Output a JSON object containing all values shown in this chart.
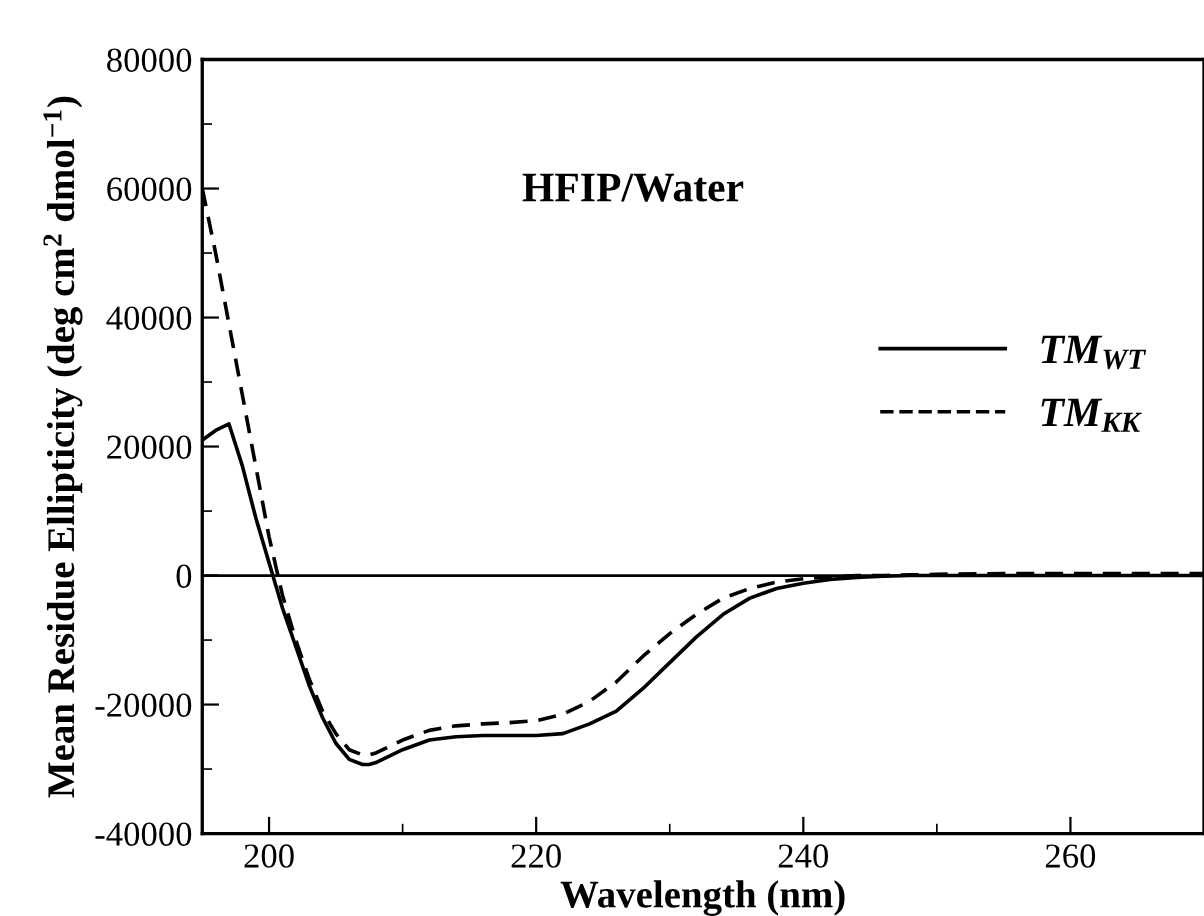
{
  "chart_data": {
    "type": "line",
    "xlabel": "Wavelength (nm)",
    "ylabel": "Mean Residue Ellipticity (deg cm$^{2}$ dmol$^{−1}$)",
    "annotations": [
      "HFIP/Water"
    ],
    "xlim": [
      195,
      270
    ],
    "xticks": [
      200,
      220,
      240,
      260
    ],
    "ylim": [
      -40000,
      80000
    ],
    "yticks": [
      -40000,
      -20000,
      0,
      20000,
      40000,
      60000,
      80000
    ],
    "grid": false,
    "legend": "right",
    "marker": "none",
    "ref_lines": [
      {
        "axis": "y",
        "value": 0,
        "color": "#000000"
      }
    ],
    "series": [
      {
        "name": "TM$_{WT}$",
        "color": "#000000",
        "line_style": "solid",
        "x": [
          195,
          196,
          197,
          198,
          199,
          200,
          201,
          202,
          203,
          204,
          205,
          206,
          207,
          207.5,
          208,
          209,
          210,
          212,
          214,
          216,
          218,
          220,
          222,
          224,
          226,
          228,
          230,
          232,
          234,
          236,
          238,
          240,
          242,
          244,
          246,
          248,
          250,
          260,
          270
        ],
        "values": [
          21000,
          22500,
          23500,
          17000,
          9000,
          2000,
          -5000,
          -11000,
          -17000,
          -22000,
          -26000,
          -28500,
          -29300,
          -29300,
          -29000,
          -28000,
          -27000,
          -25500,
          -25000,
          -24800,
          -24800,
          -24800,
          -24500,
          -23000,
          -21000,
          -17500,
          -13500,
          -9500,
          -6000,
          -3500,
          -2000,
          -1200,
          -600,
          -300,
          -100,
          0,
          0,
          0,
          0
        ]
      },
      {
        "name": "TM$_{KK}$",
        "color": "#000000",
        "line_style": "dashed",
        "x": [
          195,
          196,
          197,
          198,
          199,
          200,
          201,
          202,
          203,
          204,
          205,
          206,
          207,
          207.5,
          208,
          209,
          210,
          212,
          214,
          216,
          218,
          220,
          222,
          224,
          226,
          228,
          230,
          232,
          234,
          236,
          238,
          240,
          242,
          244,
          246,
          248,
          250,
          255,
          260,
          265,
          270
        ],
        "values": [
          60000,
          50000,
          39000,
          28000,
          17000,
          6000,
          -3000,
          -10000,
          -16000,
          -21000,
          -24500,
          -27000,
          -27800,
          -27800,
          -27500,
          -26500,
          -25500,
          -24000,
          -23300,
          -23000,
          -22800,
          -22500,
          -21500,
          -19500,
          -16500,
          -12500,
          -9000,
          -6000,
          -3500,
          -2000,
          -1000,
          -500,
          -200,
          0,
          0,
          100,
          200,
          300,
          300,
          300,
          300
        ]
      }
    ]
  }
}
